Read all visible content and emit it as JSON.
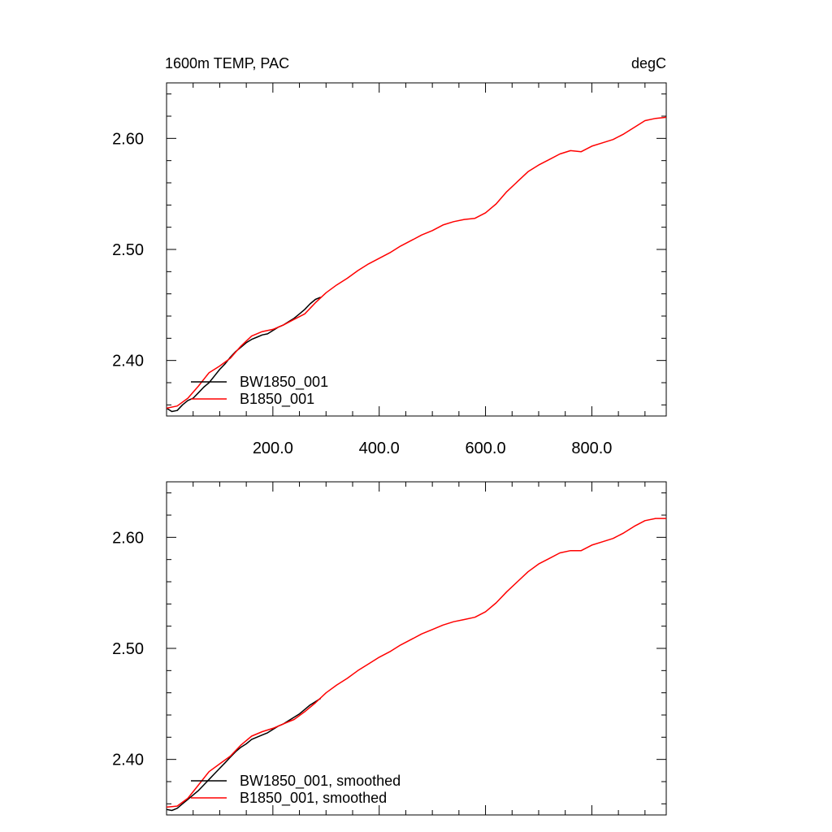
{
  "colors": {
    "series_black": "#000000",
    "series_red": "#ff0000",
    "axes": "#000000",
    "background": "#ffffff"
  },
  "chart_data": [
    {
      "type": "line",
      "title": "1600m TEMP, PAC",
      "units": "degC",
      "xlim": [
        0,
        940
      ],
      "ylim": [
        2.35,
        2.65
      ],
      "x_ticks": [
        200,
        400,
        600,
        800
      ],
      "x_tick_labels": [
        "200.0",
        "400.0",
        "600.0",
        "800.0"
      ],
      "y_ticks": [
        2.4,
        2.5,
        2.6
      ],
      "y_tick_labels": [
        "2.40",
        "2.50",
        "2.60"
      ],
      "grid": false,
      "legend_position": "bottom-left",
      "series": [
        {
          "name": "BW1850_001",
          "color": "#000000",
          "x": [
            0,
            10,
            20,
            30,
            40,
            50,
            60,
            70,
            80,
            90,
            100,
            110,
            120,
            130,
            140,
            150,
            160,
            170,
            180,
            190,
            200,
            210,
            220,
            230,
            240,
            250,
            260,
            270,
            280,
            290
          ],
          "y": [
            2.357,
            2.354,
            2.355,
            2.36,
            2.364,
            2.366,
            2.371,
            2.376,
            2.38,
            2.386,
            2.392,
            2.397,
            2.403,
            2.408,
            2.412,
            2.416,
            2.419,
            2.421,
            2.423,
            2.424,
            2.427,
            2.43,
            2.432,
            2.435,
            2.438,
            2.442,
            2.446,
            2.451,
            2.455,
            2.457
          ]
        },
        {
          "name": "B1850_001",
          "color": "#ff0000",
          "x": [
            0,
            20,
            40,
            60,
            80,
            100,
            120,
            140,
            160,
            180,
            200,
            220,
            240,
            260,
            280,
            300,
            320,
            340,
            360,
            380,
            400,
            420,
            440,
            460,
            480,
            500,
            520,
            540,
            560,
            580,
            600,
            620,
            640,
            660,
            680,
            700,
            720,
            740,
            760,
            780,
            800,
            820,
            840,
            860,
            880,
            900,
            920,
            940
          ],
          "y": [
            2.357,
            2.359,
            2.366,
            2.377,
            2.389,
            2.395,
            2.402,
            2.413,
            2.422,
            2.426,
            2.428,
            2.432,
            2.437,
            2.442,
            2.452,
            2.461,
            2.468,
            2.474,
            2.481,
            2.487,
            2.492,
            2.497,
            2.503,
            2.508,
            2.513,
            2.517,
            2.522,
            2.525,
            2.527,
            2.528,
            2.533,
            2.541,
            2.552,
            2.561,
            2.57,
            2.576,
            2.581,
            2.586,
            2.589,
            2.588,
            2.593,
            2.596,
            2.599,
            2.604,
            2.61,
            2.616,
            2.618,
            2.619
          ]
        }
      ]
    },
    {
      "type": "line",
      "xlim": [
        0,
        940
      ],
      "ylim": [
        2.35,
        2.65
      ],
      "x_ticks": [
        200,
        400,
        600,
        800
      ],
      "x_tick_labels": [],
      "y_ticks": [
        2.4,
        2.5,
        2.6
      ],
      "y_tick_labels": [
        "2.40",
        "2.50",
        "2.60"
      ],
      "grid": false,
      "legend_position": "bottom-left",
      "series": [
        {
          "name": "BW1850_001, smoothed",
          "color": "#000000",
          "x": [
            0,
            10,
            20,
            30,
            40,
            50,
            60,
            70,
            80,
            90,
            100,
            110,
            120,
            130,
            140,
            150,
            160,
            170,
            180,
            190,
            200,
            210,
            220,
            230,
            240,
            250,
            260,
            270,
            280,
            290
          ],
          "y": [
            2.355,
            2.354,
            2.356,
            2.36,
            2.364,
            2.368,
            2.372,
            2.377,
            2.382,
            2.387,
            2.392,
            2.397,
            2.402,
            2.407,
            2.411,
            2.414,
            2.418,
            2.42,
            2.422,
            2.424,
            2.427,
            2.43,
            2.432,
            2.435,
            2.438,
            2.441,
            2.445,
            2.449,
            2.452,
            2.455
          ]
        },
        {
          "name": "B1850_001, smoothed",
          "color": "#ff0000",
          "x": [
            0,
            20,
            40,
            60,
            80,
            100,
            120,
            140,
            160,
            180,
            200,
            220,
            240,
            260,
            280,
            300,
            320,
            340,
            360,
            380,
            400,
            420,
            440,
            460,
            480,
            500,
            520,
            540,
            560,
            580,
            600,
            620,
            640,
            660,
            680,
            700,
            720,
            740,
            760,
            780,
            800,
            820,
            840,
            860,
            880,
            900,
            920,
            940
          ],
          "y": [
            2.357,
            2.358,
            2.365,
            2.377,
            2.389,
            2.396,
            2.403,
            2.413,
            2.421,
            2.425,
            2.428,
            2.432,
            2.436,
            2.443,
            2.451,
            2.46,
            2.467,
            2.473,
            2.48,
            2.486,
            2.492,
            2.497,
            2.503,
            2.508,
            2.513,
            2.517,
            2.521,
            2.524,
            2.526,
            2.528,
            2.533,
            2.541,
            2.551,
            2.56,
            2.569,
            2.576,
            2.581,
            2.586,
            2.588,
            2.588,
            2.593,
            2.596,
            2.599,
            2.604,
            2.61,
            2.615,
            2.617,
            2.617
          ]
        }
      ]
    }
  ]
}
